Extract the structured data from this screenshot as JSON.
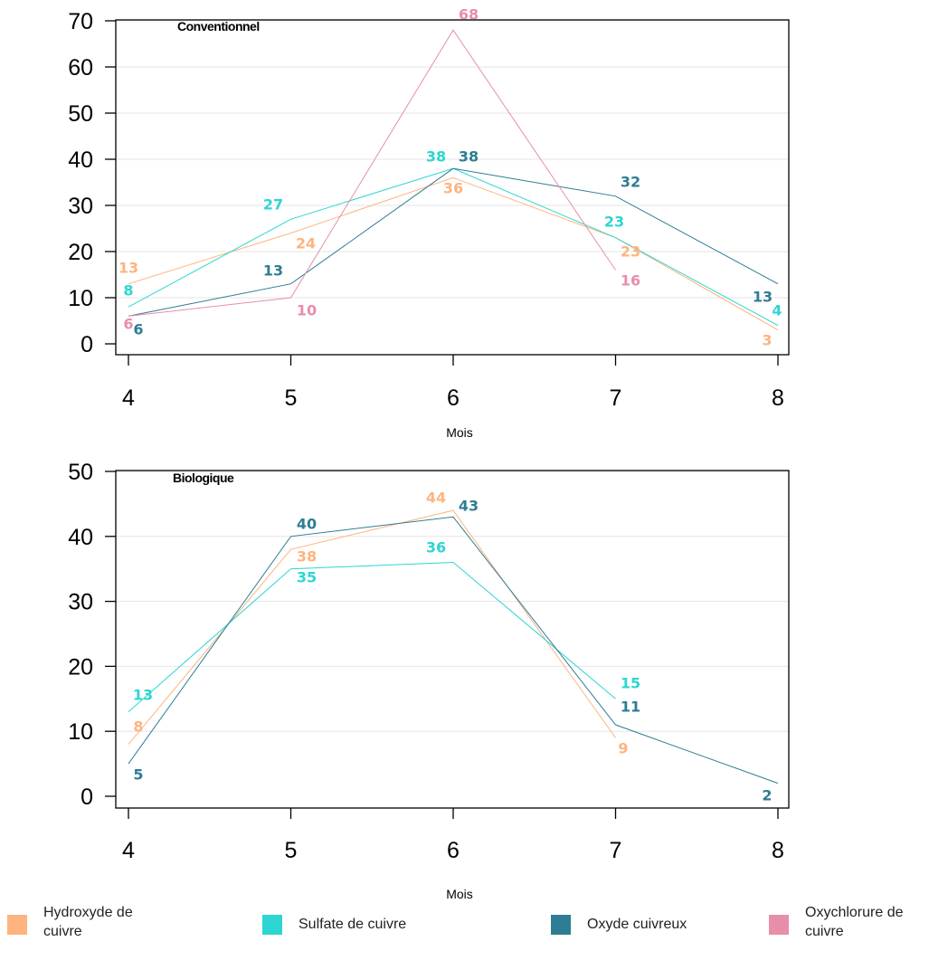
{
  "chart_data": [
    {
      "type": "line",
      "title": "Conventionnel",
      "xlabel": "Mois",
      "ylabel": "",
      "x": [
        4,
        5,
        6,
        7,
        8
      ],
      "ylim": [
        0,
        70
      ],
      "yticks": [
        0,
        10,
        20,
        30,
        40,
        50,
        60,
        70
      ],
      "grid": true,
      "series": [
        {
          "name": "Hydroxyde de cuivre",
          "color": "#FDB47F",
          "points": [
            [
              4,
              13
            ],
            [
              5,
              24
            ],
            [
              6,
              36
            ],
            [
              7,
              23
            ],
            [
              8,
              3
            ]
          ]
        },
        {
          "name": "Sulfate de cuivre",
          "color": "#2DD6D0",
          "points": [
            [
              4,
              8
            ],
            [
              5,
              27
            ],
            [
              6,
              38
            ],
            [
              7,
              23
            ],
            [
              8,
              4
            ]
          ]
        },
        {
          "name": "Oxyde cuivreux",
          "color": "#2E7D94",
          "points": [
            [
              4,
              6
            ],
            [
              5,
              13
            ],
            [
              6,
              38
            ],
            [
              7,
              32
            ],
            [
              8,
              13
            ]
          ]
        },
        {
          "name": "Oxychlorure de cuivre",
          "color": "#E88EA9",
          "points": [
            [
              4,
              6
            ],
            [
              5,
              10
            ],
            [
              6,
              68
            ],
            [
              7,
              16
            ]
          ]
        }
      ]
    },
    {
      "type": "line",
      "title": "Biologique",
      "xlabel": "Mois",
      "ylabel": "",
      "x": [
        4,
        5,
        6,
        7,
        8
      ],
      "ylim": [
        0,
        50
      ],
      "yticks": [
        0,
        10,
        20,
        30,
        40,
        50
      ],
      "grid": true,
      "series": [
        {
          "name": "Hydroxyde de cuivre",
          "color": "#FDB47F",
          "points": [
            [
              4,
              8
            ],
            [
              5,
              38
            ],
            [
              6,
              44
            ],
            [
              7,
              9
            ]
          ]
        },
        {
          "name": "Sulfate de cuivre",
          "color": "#2DD6D0",
          "points": [
            [
              4,
              13
            ],
            [
              5,
              35
            ],
            [
              6,
              36
            ],
            [
              7,
              15
            ]
          ]
        },
        {
          "name": "Oxyde cuivreux",
          "color": "#2E7D94",
          "points": [
            [
              4,
              5
            ],
            [
              5,
              40
            ],
            [
              6,
              43
            ],
            [
              7,
              11
            ],
            [
              8,
              2
            ]
          ]
        }
      ]
    }
  ],
  "legend": [
    {
      "label": "Hydroxyde de cuivre",
      "color": "#FDB47F"
    },
    {
      "label": "Sulfate de cuivre",
      "color": "#2DD6D0"
    },
    {
      "label": "Oxyde cuivreux",
      "color": "#2E7D94"
    },
    {
      "label": "Oxychlorure de cuivre",
      "color": "#E88EA9"
    }
  ]
}
